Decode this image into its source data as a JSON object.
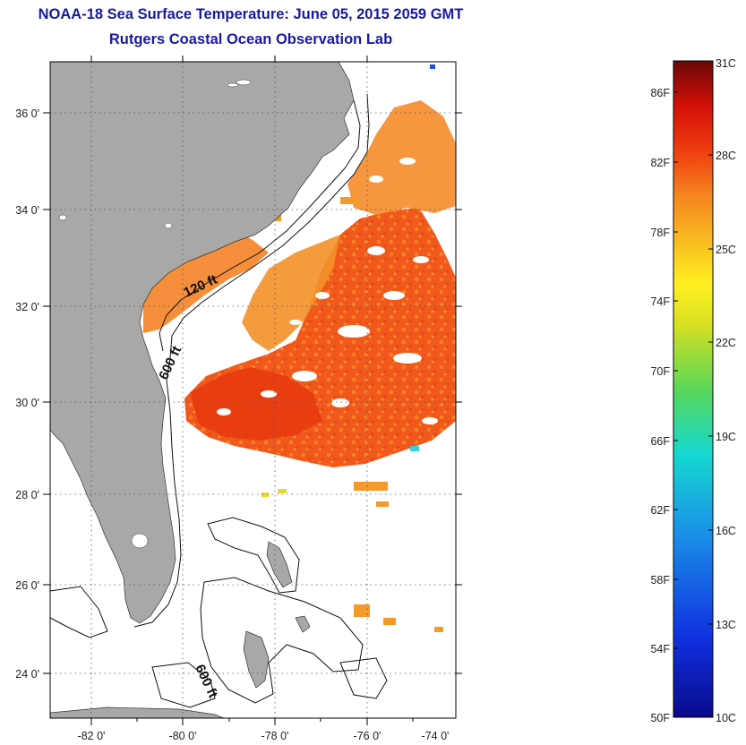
{
  "header": {
    "title": "NOAA-18 Sea Surface Temperature:  June 05, 2015 2059 GMT",
    "subtitle": "Rutgers Coastal Ocean Observation Lab"
  },
  "map": {
    "lat_labels": [
      "36 0'",
      "34 0'",
      "32 0'",
      "30 0'",
      "28 0'",
      "26 0'",
      "24 0'"
    ],
    "lon_labels": [
      "-82 0'",
      "-80 0'",
      "-78 0'",
      "-76 0'",
      "-74 0'"
    ],
    "contour_labels": [
      "120 ft",
      "600 ft",
      "600 ft"
    ],
    "colors": {
      "land": "#a8a8a8",
      "warm_sst": "#f25a10",
      "mid_sst": "#f39220"
    }
  },
  "colorbar": {
    "fahrenheit_labels": [
      "86F",
      "82F",
      "78F",
      "74F",
      "70F",
      "66F",
      "62F",
      "58F",
      "54F",
      "50F"
    ],
    "celsius_labels": [
      "31C",
      "28C",
      "25C",
      "22C",
      "19C",
      "16C",
      "13C",
      "10C"
    ],
    "range_c": [
      10,
      31
    ]
  }
}
